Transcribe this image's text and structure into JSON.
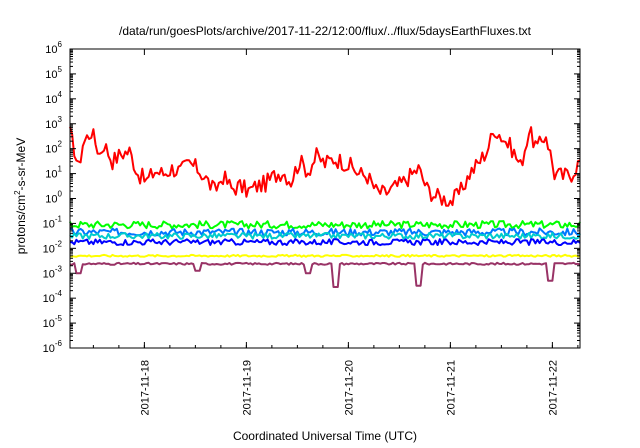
{
  "chart_data": {
    "type": "line",
    "title": "/data/run/goesPlots/archive/2017-11-22/12:00/flux/../flux/5daysEarthFluxes.txt",
    "xlabel": "Coordinated Universal Time (UTC)",
    "ylabel_parts": [
      "protons/cm",
      "2",
      "-s-sr-MeV"
    ],
    "y_scale": "log",
    "ylim_exponents": [
      -6,
      6
    ],
    "y_ticks": [
      {
        "base": "10",
        "exp": "-6"
      },
      {
        "base": "10",
        "exp": "-5"
      },
      {
        "base": "10",
        "exp": "-4"
      },
      {
        "base": "10",
        "exp": "-3"
      },
      {
        "base": "10",
        "exp": "-2"
      },
      {
        "base": "10",
        "exp": "-1"
      },
      {
        "base": "10",
        "exp": "0"
      },
      {
        "base": "10",
        "exp": "1"
      },
      {
        "base": "10",
        "exp": "2"
      },
      {
        "base": "10",
        "exp": "3"
      },
      {
        "base": "10",
        "exp": "4"
      },
      {
        "base": "10",
        "exp": "5"
      },
      {
        "base": "10",
        "exp": "6"
      }
    ],
    "x_start_hours": 0,
    "x_end_hours": 120,
    "x_tick_labels": [
      "2017-11-18",
      "2017-11-19",
      "2017-11-20",
      "2017-11-21",
      "2017-11-22"
    ],
    "x_tick_hours": [
      17.5,
      41.5,
      65.5,
      89.5,
      113.5
    ],
    "grid": false,
    "legend": "none",
    "series": [
      {
        "color": "#ff0000",
        "anchors_hours": [
          0,
          1,
          2,
          3,
          5,
          7,
          8,
          10,
          12,
          14,
          16,
          18,
          20,
          22,
          24,
          26,
          28,
          30,
          32,
          34,
          36,
          38,
          40,
          42,
          44,
          46,
          48,
          50,
          52,
          54,
          56,
          58,
          60,
          62,
          64,
          66,
          68,
          70,
          72,
          74,
          76,
          78,
          80,
          82,
          84,
          86,
          88,
          90,
          92,
          94,
          96,
          98,
          100,
          102,
          104,
          106,
          108,
          110,
          112,
          114,
          116,
          118,
          120
        ],
        "anchors_log10": [
          2.6,
          2.0,
          1.2,
          2.2,
          2.7,
          1.8,
          2.2,
          1.5,
          1.8,
          1.9,
          1.0,
          0.7,
          1.1,
          1.0,
          1.2,
          1.1,
          1.4,
          1.2,
          0.8,
          0.3,
          0.9,
          0.4,
          0.5,
          0.3,
          0.5,
          0.6,
          0.9,
          1.1,
          0.7,
          1.5,
          1.1,
          1.7,
          1.4,
          1.6,
          1.5,
          1.3,
          1.0,
          0.9,
          0.3,
          0.2,
          0.4,
          0.6,
          0.9,
          1.2,
          0.4,
          0.1,
          0.0,
          -0.1,
          0.3,
          1.0,
          1.4,
          1.9,
          2.8,
          2.4,
          2.0,
          1.3,
          2.7,
          2.0,
          2.6,
          1.0,
          0.9,
          1.0,
          1.5
        ],
        "noise": 0.35
      },
      {
        "color": "#00ff00",
        "anchors_hours": [
          0,
          120
        ],
        "anchors_log10": [
          -1.05,
          -1.05
        ],
        "noise": 0.15
      },
      {
        "color": "#0077ff",
        "anchors_hours": [
          0,
          120
        ],
        "anchors_log10": [
          -1.35,
          -1.35
        ],
        "noise": 0.15
      },
      {
        "color": "#00cccc",
        "anchors_hours": [
          0,
          120
        ],
        "anchors_log10": [
          -1.5,
          -1.5
        ],
        "noise": 0.12
      },
      {
        "color": "#0000ff",
        "anchors_hours": [
          0,
          120
        ],
        "anchors_log10": [
          -1.75,
          -1.75
        ],
        "noise": 0.12
      },
      {
        "color": "#ffff00",
        "anchors_hours": [
          0,
          120
        ],
        "anchors_log10": [
          -2.3,
          -2.3
        ],
        "noise": 0.04
      },
      {
        "color": "#993366",
        "anchors_hours": [
          0,
          120
        ],
        "anchors_log10": [
          -2.62,
          -2.62
        ],
        "noise": 0.04,
        "dips_hours": [
          2,
          30,
          56,
          62.5,
          82,
          113
        ],
        "dips_log10": [
          -3.0,
          -2.9,
          -3.0,
          -3.55,
          -3.5,
          -3.3
        ]
      }
    ]
  }
}
